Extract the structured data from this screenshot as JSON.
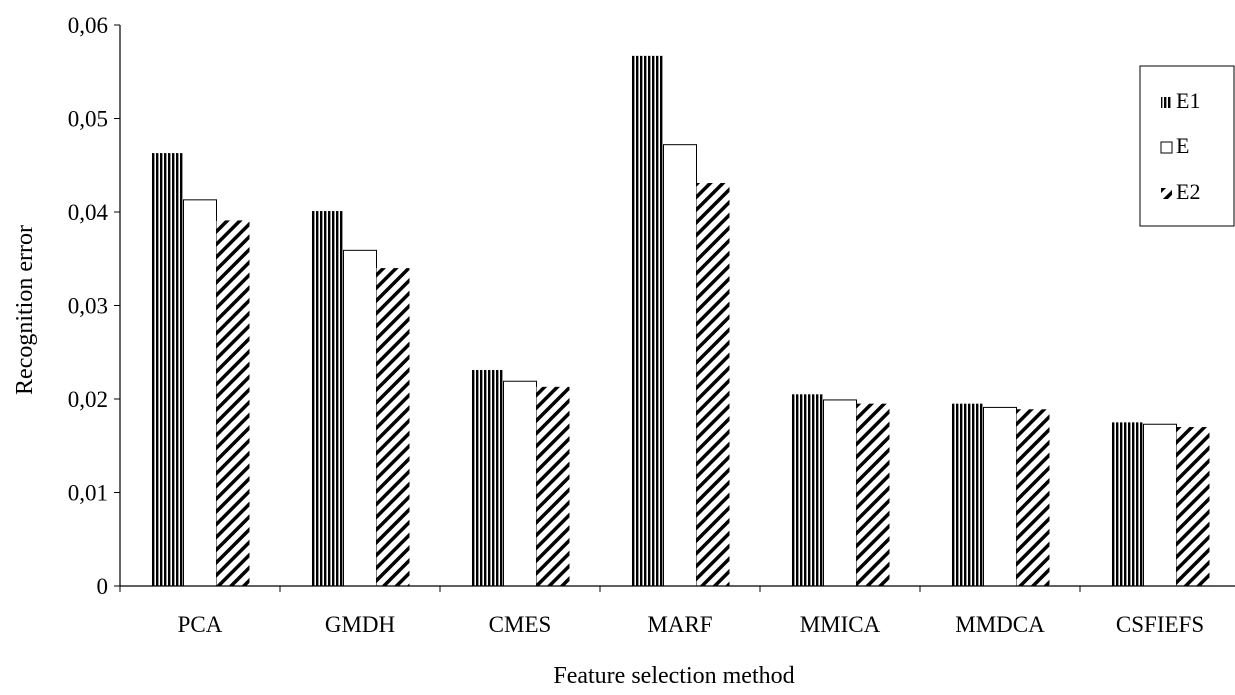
{
  "chart_data": {
    "type": "bar",
    "title": "",
    "xlabel": "Feature selection method",
    "ylabel": "Recognition error",
    "categories": [
      "PCA",
      "GMDH",
      "CMES",
      "MARF",
      "MMICA",
      "MMDCA",
      "CSFIEFS"
    ],
    "series": [
      {
        "name": "E1",
        "values": [
          0.0463,
          0.0401,
          0.0231,
          0.0567,
          0.0205,
          0.0195,
          0.0175
        ],
        "pattern": "vertical-stripes"
      },
      {
        "name": "E",
        "values": [
          0.0413,
          0.0359,
          0.0219,
          0.0472,
          0.0199,
          0.0191,
          0.0173
        ],
        "pattern": "solid-white"
      },
      {
        "name": "E2",
        "values": [
          0.0391,
          0.034,
          0.0213,
          0.0431,
          0.0195,
          0.0189,
          0.017
        ],
        "pattern": "diagonal-stripes"
      }
    ],
    "ylim": [
      0,
      0.06
    ],
    "yticks": [
      0,
      0.01,
      0.02,
      0.03,
      0.04,
      0.05,
      0.06
    ],
    "ytick_labels": [
      "0",
      "0,01",
      "0,02",
      "0,03",
      "0,04",
      "0,05",
      "0,06"
    ],
    "grid": false,
    "legend_position": "top-right",
    "colors": {
      "stroke": "#000000",
      "fill": "#ffffff"
    }
  }
}
